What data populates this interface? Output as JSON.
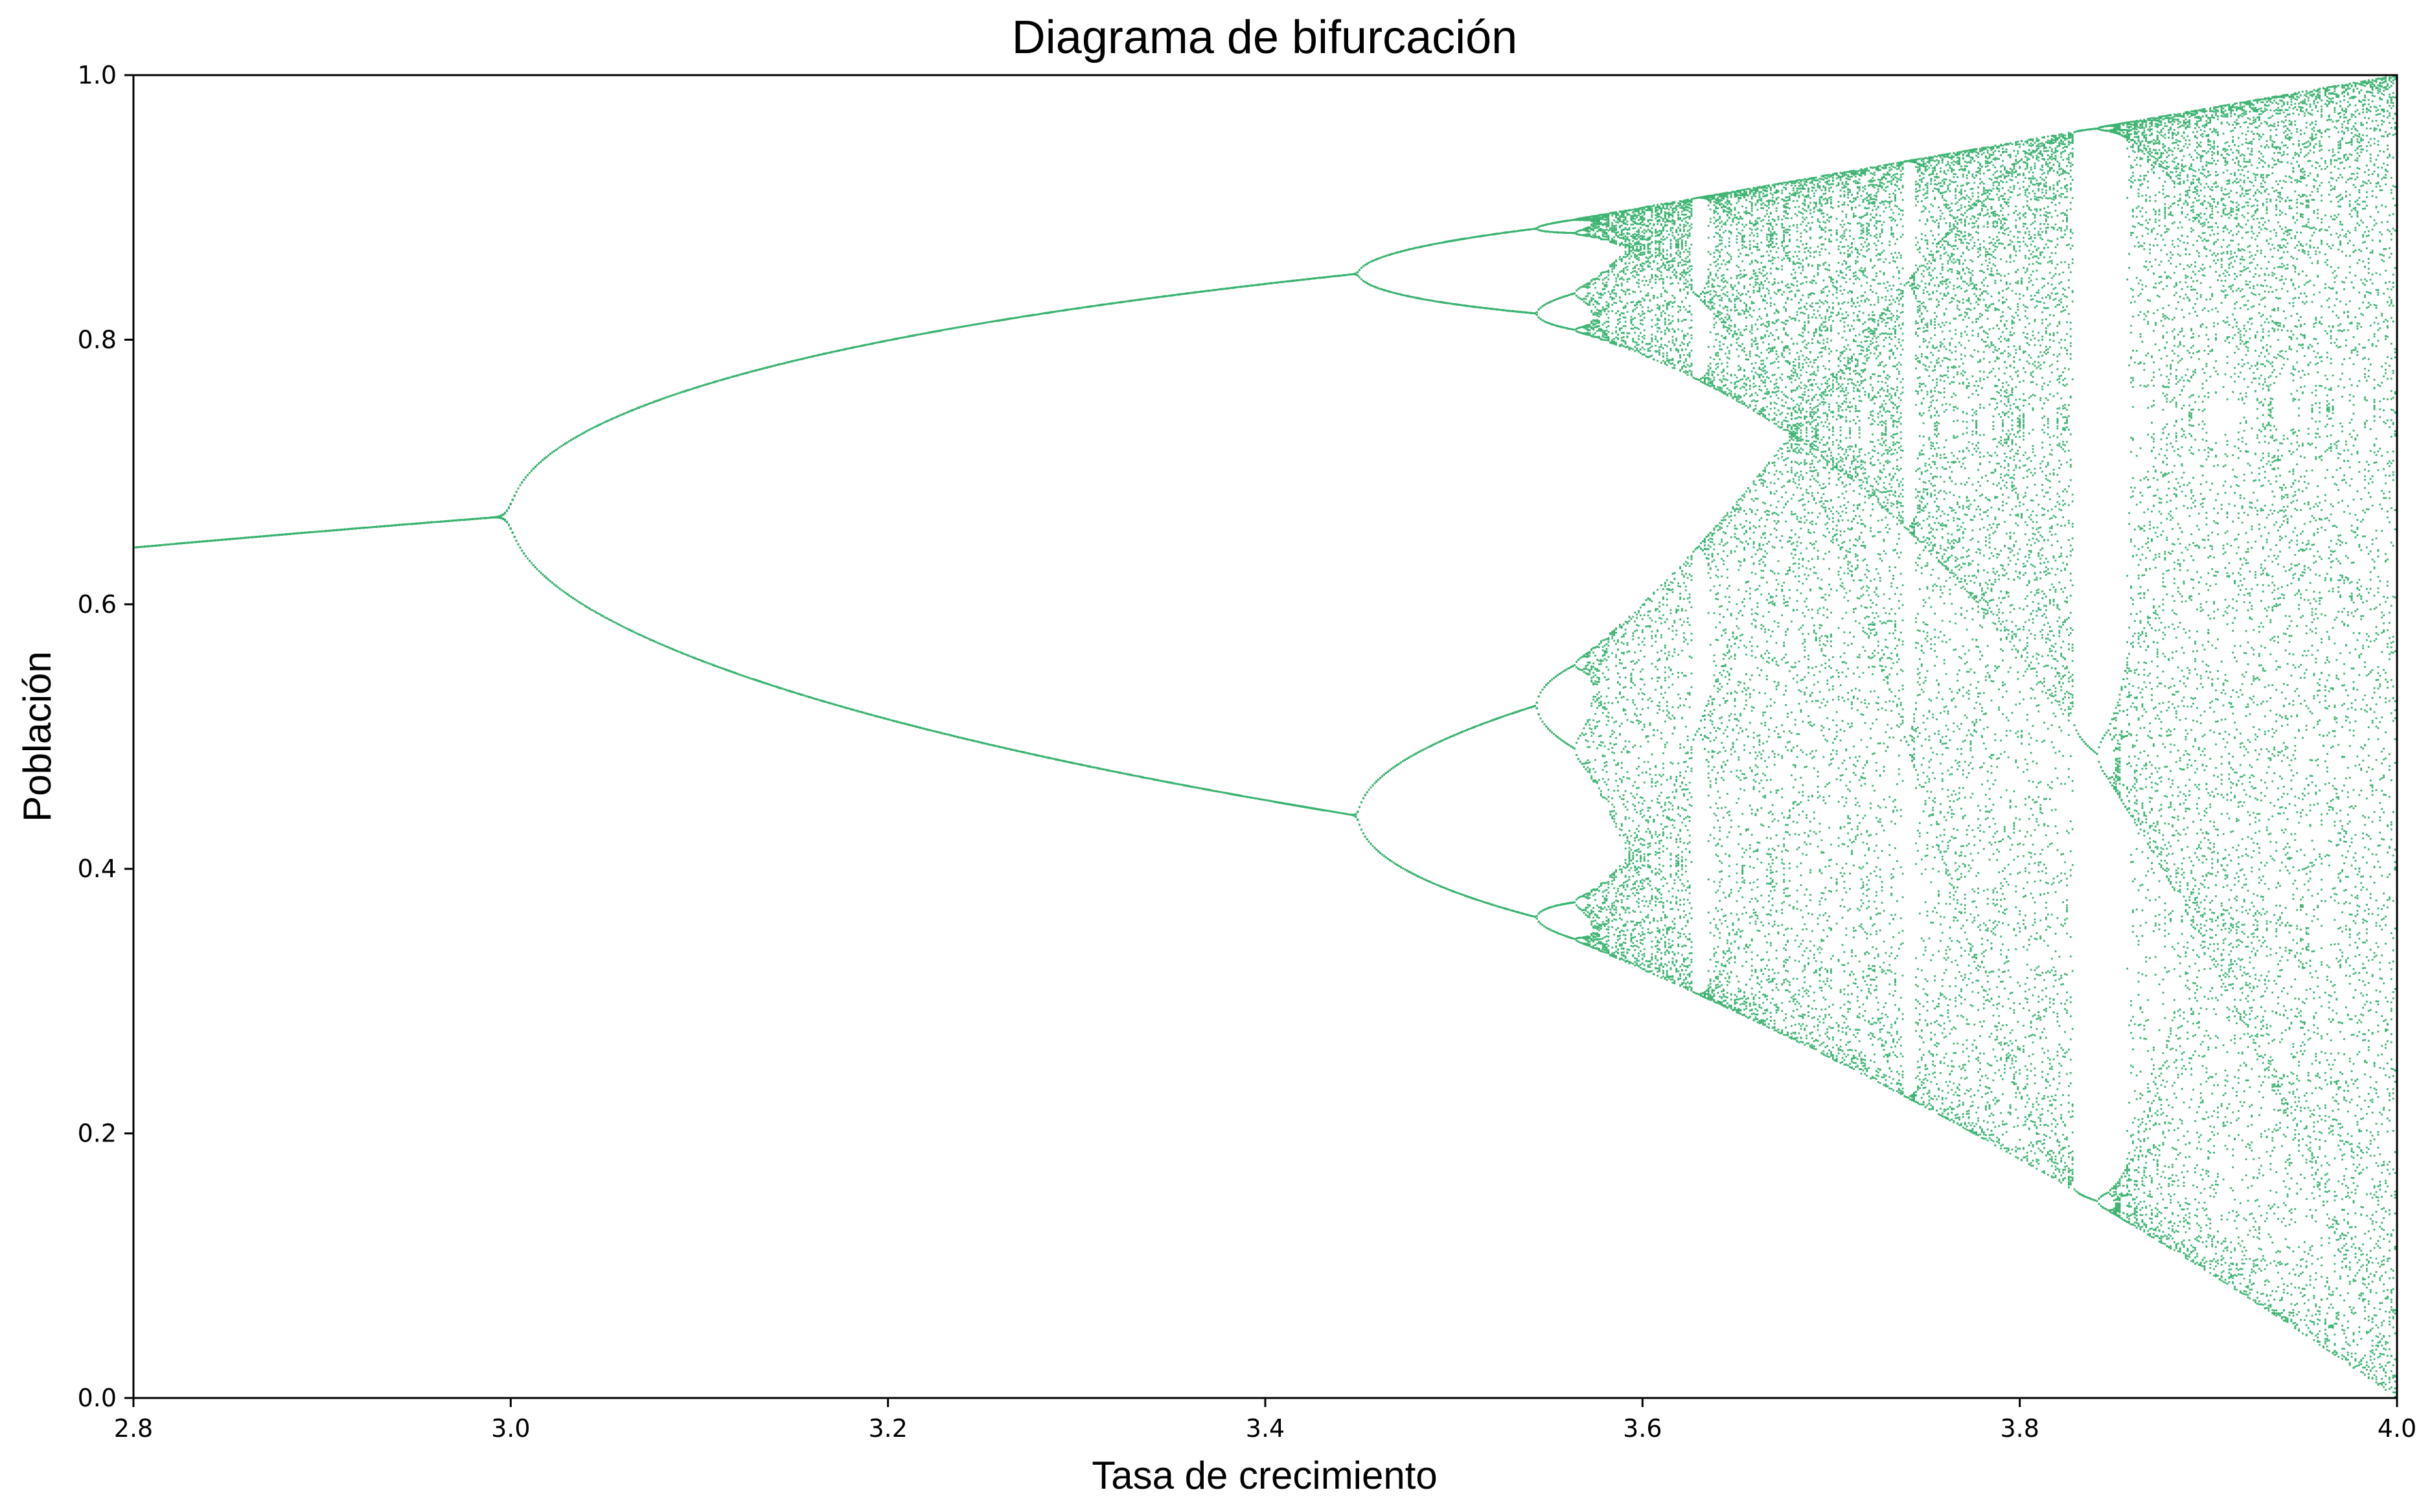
{
  "chart_data": {
    "type": "scatter",
    "title": "Diagrama de bifurcación",
    "xlabel": "Tasa de crecimiento",
    "ylabel": "Población",
    "xlim": [
      2.8,
      4.0
    ],
    "ylim": [
      0.0,
      1.0
    ],
    "x_ticks": [
      2.8,
      3.0,
      3.2,
      3.4,
      3.6,
      3.8,
      4.0
    ],
    "x_tick_labels": [
      "2.8",
      "3.0",
      "3.2",
      "3.4",
      "3.6",
      "3.8",
      "4.0"
    ],
    "y_ticks": [
      0.0,
      0.2,
      0.4,
      0.6,
      0.8,
      1.0
    ],
    "y_tick_labels": [
      "0.0",
      "0.2",
      "0.4",
      "0.6",
      "0.8",
      "1.0"
    ],
    "grid": false,
    "legend": "none",
    "marker_color": "#3cb371",
    "series": [
      {
        "x_start": 2.8,
        "x_end": 4.0,
        "x_steps": 1200,
        "initial_population": 0.5,
        "transient_iterations": 600,
        "recorded_iterations": 70
      }
    ]
  }
}
